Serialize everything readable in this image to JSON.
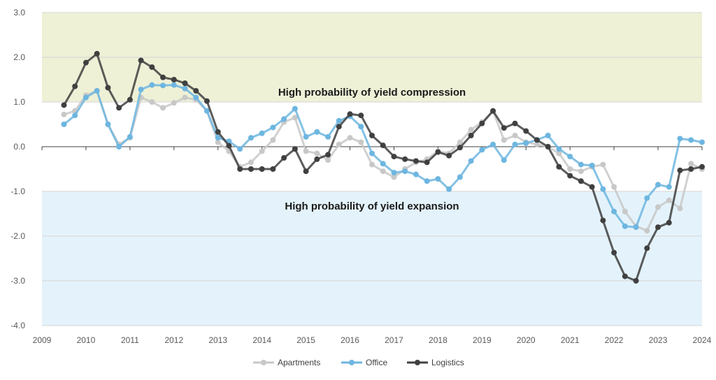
{
  "chart_data": {
    "type": "line",
    "title": "",
    "xlabel": "",
    "ylabel": "",
    "xlim": [
      2009,
      2024
    ],
    "ylim": [
      -4,
      3
    ],
    "x_ticks": [
      "2009",
      "2010",
      "2011",
      "2012",
      "2013",
      "2014",
      "2015",
      "2016",
      "2017",
      "2018",
      "2019",
      "2020",
      "2021",
      "2022",
      "2023",
      "2024"
    ],
    "y_ticks": [
      "3.0",
      "2.0",
      "1.0",
      "0.0",
      "-1.0",
      "-2.0",
      "-3.0",
      "-4.0"
    ],
    "grid": true,
    "legend": "bottom",
    "bands": [
      {
        "label": "High probability of yield compression",
        "from": 1.0,
        "to": 3.0,
        "color": "#eef1d6"
      },
      {
        "label": "High probability of yield expansion",
        "from": -4.0,
        "to": -1.0,
        "color": "#e4f3fb"
      }
    ],
    "x": [
      2009.5,
      2009.75,
      2010,
      2010.25,
      2010.5,
      2010.75,
      2011,
      2011.25,
      2011.5,
      2011.75,
      2012,
      2012.25,
      2012.5,
      2012.75,
      2013,
      2013.25,
      2013.5,
      2013.75,
      2014,
      2014.25,
      2014.5,
      2014.75,
      2015,
      2015.25,
      2015.5,
      2015.75,
      2016,
      2016.25,
      2016.5,
      2016.75,
      2017,
      2017.25,
      2017.5,
      2017.75,
      2018,
      2018.25,
      2018.5,
      2018.75,
      2019,
      2019.25,
      2019.5,
      2019.75,
      2020,
      2020.25,
      2020.5,
      2020.75,
      2021,
      2021.25,
      2021.5,
      2021.75,
      2022,
      2022.25,
      2022.5,
      2022.75,
      2023,
      2023.25,
      2023.5,
      2023.75,
      2024
    ],
    "series": [
      {
        "name": "Apartments",
        "color": "#c8c8c8",
        "values": [
          0.72,
          0.8,
          1.15,
          1.25,
          0.5,
          0.05,
          0.2,
          1.1,
          1.0,
          0.87,
          0.98,
          1.1,
          1.05,
          0.8,
          0.1,
          -0.1,
          -0.45,
          -0.35,
          -0.1,
          0.15,
          0.55,
          0.65,
          -0.1,
          -0.15,
          -0.3,
          0.05,
          0.2,
          0.1,
          -0.4,
          -0.55,
          -0.68,
          -0.5,
          -0.35,
          -0.28,
          -0.1,
          -0.15,
          0.1,
          0.38,
          0.55,
          0.8,
          0.15,
          0.25,
          0.1,
          0.05,
          0.0,
          -0.15,
          -0.5,
          -0.55,
          -0.45,
          -0.4,
          -0.9,
          -1.45,
          -1.78,
          -1.88,
          -1.35,
          -1.2,
          -1.38,
          -0.38,
          -0.5
        ]
      },
      {
        "name": "Office",
        "color": "#6db6e0",
        "values": [
          0.5,
          0.7,
          1.1,
          1.25,
          0.5,
          0.0,
          0.22,
          1.28,
          1.38,
          1.37,
          1.38,
          1.3,
          1.1,
          0.8,
          0.2,
          0.12,
          -0.05,
          0.2,
          0.3,
          0.43,
          0.62,
          0.85,
          0.22,
          0.33,
          0.22,
          0.58,
          0.68,
          0.45,
          -0.15,
          -0.38,
          -0.58,
          -0.55,
          -0.62,
          -0.77,
          -0.72,
          -0.95,
          -0.68,
          -0.32,
          -0.07,
          0.05,
          -0.3,
          0.05,
          0.08,
          0.15,
          0.25,
          -0.05,
          -0.22,
          -0.4,
          -0.42,
          -0.95,
          -1.45,
          -1.78,
          -1.8,
          -1.15,
          -0.85,
          -0.9,
          0.18,
          0.15,
          0.1
        ]
      },
      {
        "name": "Logistics",
        "color": "#404040",
        "values": [
          0.93,
          1.35,
          1.88,
          2.08,
          1.32,
          0.87,
          1.05,
          1.93,
          1.78,
          1.55,
          1.5,
          1.42,
          1.25,
          1.02,
          0.33,
          0.02,
          -0.5,
          -0.5,
          -0.5,
          -0.5,
          -0.25,
          -0.05,
          -0.55,
          -0.28,
          -0.18,
          0.45,
          0.73,
          0.7,
          0.25,
          0.03,
          -0.22,
          -0.28,
          -0.32,
          -0.35,
          -0.12,
          -0.2,
          -0.02,
          0.25,
          0.52,
          0.8,
          0.42,
          0.52,
          0.35,
          0.15,
          0.0,
          -0.45,
          -0.65,
          -0.77,
          -0.9,
          -1.65,
          -2.37,
          -2.9,
          -3.0,
          -2.27,
          -1.8,
          -1.7,
          -0.53,
          -0.5,
          -0.45
        ]
      }
    ]
  }
}
